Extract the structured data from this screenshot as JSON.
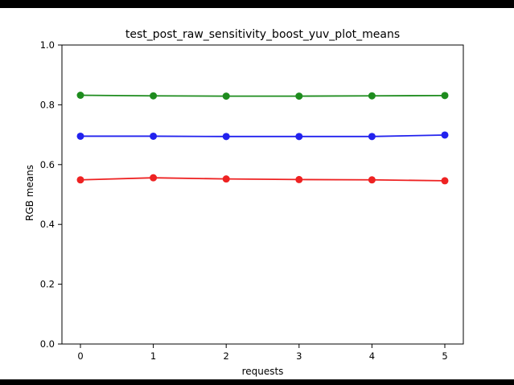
{
  "chart_data": {
    "type": "line",
    "title": "test_post_raw_sensitivity_boost_yuv_plot_means",
    "xlabel": "requests",
    "ylabel": "RGB means",
    "x": [
      0,
      1,
      2,
      3,
      4,
      5
    ],
    "series": [
      {
        "name": "green",
        "color": "#1e8c1e",
        "values": [
          0.832,
          0.83,
          0.829,
          0.829,
          0.83,
          0.831
        ]
      },
      {
        "name": "blue",
        "color": "#2222ee",
        "values": [
          0.695,
          0.695,
          0.694,
          0.694,
          0.694,
          0.699
        ]
      },
      {
        "name": "red",
        "color": "#ee2222",
        "values": [
          0.549,
          0.556,
          0.552,
          0.55,
          0.549,
          0.546
        ]
      }
    ],
    "xlim": [
      0,
      5
    ],
    "ylim": [
      0.0,
      1.0
    ],
    "xticks": [
      0,
      1,
      2,
      3,
      4,
      5
    ],
    "yticks": [
      0.0,
      0.2,
      0.4,
      0.6,
      0.8,
      1.0
    ],
    "grid": false,
    "legend": "none"
  },
  "colors": {
    "background": "#ffffff",
    "letterbox": "#000000",
    "axis": "#000000"
  }
}
